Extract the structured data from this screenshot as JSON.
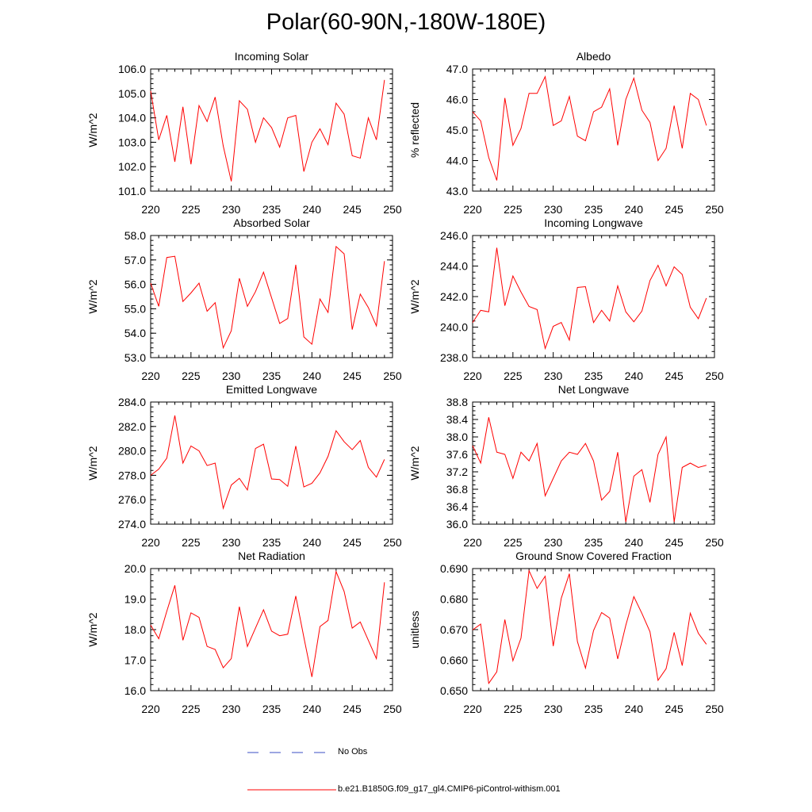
{
  "title": "Polar(60-90N,-180W-180E)",
  "legend": {
    "obs_label": "No Obs",
    "model_label": "b.e21.B1850G.f09_g17_gl4.CMIP6-piControl-withism.001",
    "obs_color": "#3b4fc4",
    "model_color": "#ff0000"
  },
  "chart_data": [
    {
      "type": "line",
      "title": "Incoming Solar",
      "ylabel": "W/m^2",
      "xlim": [
        220,
        250
      ],
      "ylim": [
        101,
        106
      ],
      "yticks": [
        101,
        102,
        103,
        104,
        105,
        106
      ],
      "ytick_labels": [
        "101.0",
        "102.0",
        "103.0",
        "104.0",
        "105.0",
        "106.0"
      ],
      "yminor": 0.2,
      "xticks": [
        220,
        225,
        230,
        235,
        240,
        245,
        250
      ],
      "xtick_labels": [
        "220",
        "225",
        "230",
        "235",
        "240",
        "245",
        "250"
      ],
      "x": [
        220,
        221,
        222,
        223,
        224,
        225,
        226,
        227,
        228,
        229,
        230,
        231,
        232,
        233,
        234,
        235,
        236,
        237,
        238,
        239,
        240,
        241,
        242,
        243,
        244,
        245,
        246,
        247,
        248,
        249
      ],
      "series": [
        {
          "values": [
            105.1,
            103.1,
            104.1,
            102.2,
            104.45,
            102.1,
            104.5,
            103.85,
            104.85,
            102.85,
            101.4,
            104.7,
            104.35,
            103.0,
            104.0,
            103.6,
            102.8,
            104.0,
            104.1,
            101.8,
            103.0,
            103.55,
            102.9,
            104.6,
            104.15,
            102.45,
            102.35,
            104.0,
            103.1,
            105.55
          ]
        }
      ]
    },
    {
      "type": "line",
      "title": "Albedo",
      "ylabel": "% reflected",
      "xlim": [
        220,
        250
      ],
      "ylim": [
        43,
        47
      ],
      "yticks": [
        43,
        44,
        45,
        46,
        47
      ],
      "ytick_labels": [
        "43.0",
        "44.0",
        "45.0",
        "46.0",
        "47.0"
      ],
      "yminor": 0.2,
      "xticks": [
        220,
        225,
        230,
        235,
        240,
        245,
        250
      ],
      "xtick_labels": [
        "220",
        "225",
        "230",
        "235",
        "240",
        "245",
        "250"
      ],
      "x": [
        220,
        221,
        222,
        223,
        224,
        225,
        226,
        227,
        228,
        229,
        230,
        231,
        232,
        233,
        234,
        235,
        236,
        237,
        238,
        239,
        240,
        241,
        242,
        243,
        244,
        245,
        246,
        247,
        248,
        249
      ],
      "series": [
        {
          "values": [
            45.6,
            45.3,
            44.1,
            43.35,
            46.05,
            44.5,
            45.05,
            46.2,
            46.2,
            46.75,
            45.15,
            45.3,
            46.1,
            44.8,
            44.65,
            45.6,
            45.75,
            46.35,
            44.5,
            46.0,
            46.7,
            45.65,
            45.25,
            44.0,
            44.4,
            45.8,
            44.4,
            46.2,
            46.0,
            45.15
          ]
        }
      ]
    },
    {
      "type": "line",
      "title": "Absorbed Solar",
      "ylabel": "W/m^2",
      "xlim": [
        220,
        250
      ],
      "ylim": [
        53,
        58
      ],
      "yticks": [
        53,
        54,
        55,
        56,
        57,
        58
      ],
      "ytick_labels": [
        "53.0",
        "54.0",
        "55.0",
        "56.0",
        "57.0",
        "58.0"
      ],
      "yminor": 0.2,
      "xticks": [
        220,
        225,
        230,
        235,
        240,
        245,
        250
      ],
      "xtick_labels": [
        "220",
        "225",
        "230",
        "235",
        "240",
        "245",
        "250"
      ],
      "x": [
        220,
        221,
        222,
        223,
        224,
        225,
        226,
        227,
        228,
        229,
        230,
        231,
        232,
        233,
        234,
        235,
        236,
        237,
        238,
        239,
        240,
        241,
        242,
        243,
        244,
        245,
        246,
        247,
        248,
        249
      ],
      "series": [
        {
          "values": [
            56.05,
            55.1,
            57.1,
            57.15,
            55.3,
            55.65,
            56.05,
            54.9,
            55.25,
            53.4,
            54.1,
            56.25,
            55.1,
            55.7,
            56.5,
            55.45,
            54.4,
            54.6,
            56.8,
            53.85,
            53.55,
            55.4,
            54.85,
            57.55,
            57.25,
            54.15,
            55.6,
            55.05,
            54.3,
            56.95
          ]
        }
      ]
    },
    {
      "type": "line",
      "title": "Incoming Longwave",
      "ylabel": "W/m^2",
      "xlim": [
        220,
        250
      ],
      "ylim": [
        238,
        246
      ],
      "yticks": [
        238,
        240,
        242,
        244,
        246
      ],
      "ytick_labels": [
        "238.0",
        "240.0",
        "242.0",
        "244.0",
        "246.0"
      ],
      "yminor": 0.4,
      "xticks": [
        220,
        225,
        230,
        235,
        240,
        245,
        250
      ],
      "xtick_labels": [
        "220",
        "225",
        "230",
        "235",
        "240",
        "245",
        "250"
      ],
      "x": [
        220,
        221,
        222,
        223,
        224,
        225,
        226,
        227,
        228,
        229,
        230,
        231,
        232,
        233,
        234,
        235,
        236,
        237,
        238,
        239,
        240,
        241,
        242,
        243,
        244,
        245,
        246,
        247,
        248,
        249
      ],
      "series": [
        {
          "values": [
            240.3,
            241.1,
            241.0,
            245.2,
            241.4,
            243.35,
            242.3,
            241.35,
            241.15,
            238.6,
            240.05,
            240.3,
            239.15,
            242.6,
            242.65,
            240.3,
            241.1,
            240.4,
            242.7,
            241.0,
            240.35,
            241.05,
            243.05,
            244.05,
            242.7,
            243.95,
            243.45,
            241.3,
            240.55,
            241.9
          ]
        }
      ]
    },
    {
      "type": "line",
      "title": "Emitted Longwave",
      "ylabel": "W/m^2",
      "xlim": [
        220,
        250
      ],
      "ylim": [
        274,
        284
      ],
      "yticks": [
        274,
        276,
        278,
        280,
        282,
        284
      ],
      "ytick_labels": [
        "274.0",
        "276.0",
        "278.0",
        "280.0",
        "282.0",
        "284.0"
      ],
      "yminor": 0.4,
      "xticks": [
        220,
        225,
        230,
        235,
        240,
        245,
        250
      ],
      "xtick_labels": [
        "220",
        "225",
        "230",
        "235",
        "240",
        "245",
        "250"
      ],
      "x": [
        220,
        221,
        222,
        223,
        224,
        225,
        226,
        227,
        228,
        229,
        230,
        231,
        232,
        233,
        234,
        235,
        236,
        237,
        238,
        239,
        240,
        241,
        242,
        243,
        244,
        245,
        246,
        247,
        248,
        249
      ],
      "series": [
        {
          "values": [
            278.0,
            278.5,
            279.4,
            282.9,
            279.0,
            280.4,
            280.0,
            278.8,
            279.0,
            275.3,
            277.2,
            277.75,
            276.8,
            280.2,
            280.55,
            277.7,
            277.65,
            277.1,
            280.4,
            277.05,
            277.35,
            278.2,
            279.55,
            281.65,
            280.75,
            280.1,
            280.85,
            278.65,
            277.85,
            279.3
          ]
        }
      ]
    },
    {
      "type": "line",
      "title": "Net Longwave",
      "ylabel": "W/m^2",
      "xlim": [
        220,
        250
      ],
      "ylim": [
        36,
        38.8
      ],
      "yticks": [
        36.0,
        36.4,
        36.8,
        37.2,
        37.6,
        38.0,
        38.4,
        38.8
      ],
      "ytick_labels": [
        "36.0",
        "36.4",
        "36.8",
        "37.2",
        "37.6",
        "38.0",
        "38.4",
        "38.8"
      ],
      "yminor": 0.1,
      "xticks": [
        220,
        225,
        230,
        235,
        240,
        245,
        250
      ],
      "xtick_labels": [
        "220",
        "225",
        "230",
        "235",
        "240",
        "245",
        "250"
      ],
      "x": [
        220,
        221,
        222,
        223,
        224,
        225,
        226,
        227,
        228,
        229,
        230,
        231,
        232,
        233,
        234,
        235,
        236,
        237,
        238,
        239,
        240,
        241,
        242,
        243,
        244,
        245,
        246,
        247,
        248,
        249
      ],
      "series": [
        {
          "values": [
            37.8,
            37.4,
            38.45,
            37.65,
            37.6,
            37.05,
            37.65,
            37.45,
            37.85,
            36.65,
            37.05,
            37.45,
            37.65,
            37.6,
            37.85,
            37.45,
            36.55,
            36.75,
            37.65,
            36.05,
            37.1,
            37.25,
            36.5,
            37.6,
            38.0,
            36.05,
            37.3,
            37.4,
            37.3,
            37.35
          ]
        }
      ]
    },
    {
      "type": "line",
      "title": "Net Radiation",
      "ylabel": "W/m^2",
      "xlim": [
        220,
        250
      ],
      "ylim": [
        16,
        20
      ],
      "yticks": [
        16,
        17,
        18,
        19,
        20
      ],
      "ytick_labels": [
        "16.0",
        "17.0",
        "18.0",
        "19.0",
        "20.0"
      ],
      "yminor": 0.2,
      "xticks": [
        220,
        225,
        230,
        235,
        240,
        245,
        250
      ],
      "xtick_labels": [
        "220",
        "225",
        "230",
        "235",
        "240",
        "245",
        "250"
      ],
      "x": [
        220,
        221,
        222,
        223,
        224,
        225,
        226,
        227,
        228,
        229,
        230,
        231,
        232,
        233,
        234,
        235,
        236,
        237,
        238,
        239,
        240,
        241,
        242,
        243,
        244,
        245,
        246,
        247,
        248,
        249
      ],
      "series": [
        {
          "values": [
            18.15,
            17.7,
            18.6,
            19.45,
            17.65,
            18.55,
            18.4,
            17.45,
            17.35,
            16.75,
            17.05,
            18.75,
            17.45,
            18.05,
            18.65,
            17.95,
            17.8,
            17.85,
            19.1,
            17.75,
            16.45,
            18.1,
            18.3,
            19.9,
            19.25,
            18.05,
            18.25,
            17.65,
            17.05,
            19.55
          ]
        }
      ]
    },
    {
      "type": "line",
      "title": "Ground Snow Covered Fraction",
      "ylabel": "unitless",
      "xlim": [
        220,
        250
      ],
      "ylim": [
        0.65,
        0.69
      ],
      "yticks": [
        0.65,
        0.66,
        0.67,
        0.68,
        0.69
      ],
      "ytick_labels": [
        "0.650",
        "0.660",
        "0.670",
        "0.680",
        "0.690"
      ],
      "yminor": 0.002,
      "xticks": [
        220,
        225,
        230,
        235,
        240,
        245,
        250
      ],
      "xtick_labels": [
        "220",
        "225",
        "230",
        "235",
        "240",
        "245",
        "250"
      ],
      "x": [
        220,
        221,
        222,
        223,
        224,
        225,
        226,
        227,
        228,
        229,
        230,
        231,
        232,
        233,
        234,
        235,
        236,
        237,
        238,
        239,
        240,
        241,
        242,
        243,
        244,
        245,
        246,
        247,
        248,
        249
      ],
      "series": [
        {
          "values": [
            0.6699,
            0.6718,
            0.6524,
            0.6562,
            0.6733,
            0.6598,
            0.6672,
            0.6893,
            0.6835,
            0.6875,
            0.6646,
            0.6803,
            0.6883,
            0.6661,
            0.6574,
            0.6697,
            0.6756,
            0.6738,
            0.6604,
            0.6714,
            0.6808,
            0.6753,
            0.6693,
            0.6534,
            0.6572,
            0.6691,
            0.6582,
            0.6754,
            0.6688,
            0.6652
          ]
        }
      ]
    }
  ]
}
